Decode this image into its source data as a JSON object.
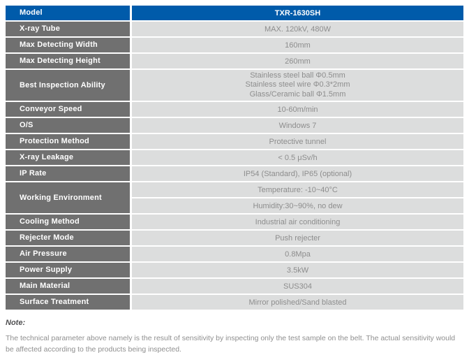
{
  "colors": {
    "header_blue": "#005baa",
    "label_gray": "#707070",
    "value_bg": "#dcdddd",
    "value_text": "#8d8d8d",
    "label_text": "#ffffff",
    "note_title_color": "#4f4f51",
    "note_body_color": "#8f8f8f"
  },
  "table": {
    "header": {
      "label": "Model",
      "value": "TXR-1630SH"
    },
    "rows": [
      {
        "label": "X-ray Tube",
        "value": "MAX. 120kV, 480W"
      },
      {
        "label": "Max Detecting Width",
        "value": "160mm"
      },
      {
        "label": "Max Detecting Height",
        "value": "260mm"
      },
      {
        "label": "Best Inspection Ability",
        "value_lines": [
          "Stainless steel ball Φ0.5mm",
          "Stainless steel wire Φ0.3*2mm",
          "Glass/Ceramic ball Φ1.5mm"
        ]
      },
      {
        "label": "Conveyor Speed",
        "value": "10-60m/min"
      },
      {
        "label": "O/S",
        "value": "Windows 7"
      },
      {
        "label": "Protection Method",
        "value": "Protective tunnel"
      },
      {
        "label": "X-ray Leakage",
        "value": "< 0.5 μSv/h"
      },
      {
        "label": "IP Rate",
        "value": "IP54 (Standard), IP65 (optional)"
      },
      {
        "label": "Working Environment",
        "values": [
          "Temperature: -10~40°C",
          "Humidity:30~90%, no dew"
        ]
      },
      {
        "label": "Cooling Method",
        "value": "Industrial air conditioning"
      },
      {
        "label": "Rejecter Mode",
        "value": "Push rejecter"
      },
      {
        "label": "Air Pressure",
        "value": "0.8Mpa"
      },
      {
        "label": "Power Supply",
        "value": "3.5kW"
      },
      {
        "label": "Main Material",
        "value": "SUS304"
      },
      {
        "label": "Surface Treatment",
        "value": "Mirror polished/Sand blasted"
      }
    ]
  },
  "note": {
    "title": "Note:",
    "body": "The technical parameter above namely is the result of sensitivity by inspecting only the test sample on the belt. The actual sensitivity would be affected according to the products being inspected."
  }
}
